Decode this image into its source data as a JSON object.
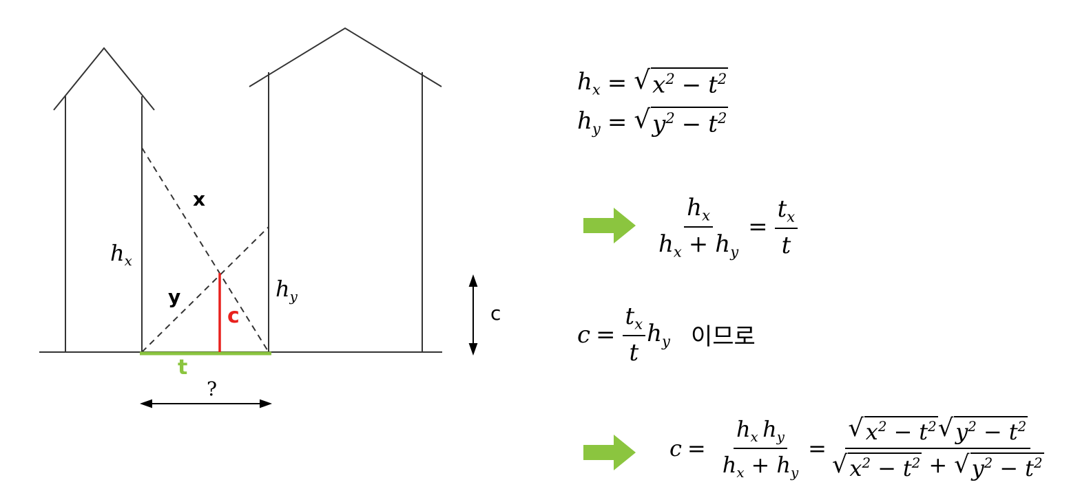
{
  "diagram": {
    "label_x": "x",
    "label_y": "y",
    "label_hx_base": "h",
    "label_hx_sub": "x",
    "label_hy_base": "h",
    "label_hy_sub": "y",
    "label_c_red": "c",
    "label_t_green": "t",
    "label_question": "?",
    "label_c_side": "c",
    "colors": {
      "red": "#e8211d",
      "green": "#8bc53f",
      "line": "#333333"
    }
  },
  "equations": {
    "eq1": {
      "lhs_base": "h",
      "lhs_sub": "x",
      "equals": "=",
      "r1": "x",
      "r1_exp": "2",
      "minus": "−",
      "r2": "t",
      "r2_exp": "2"
    },
    "eq2": {
      "lhs_base": "h",
      "lhs_sub": "y",
      "equals": "=",
      "r1": "y",
      "r1_exp": "2",
      "minus": "−",
      "r2": "t",
      "r2_exp": "2"
    },
    "eq3": {
      "num_base": "h",
      "num_sub": "x",
      "den_a_base": "h",
      "den_a_sub": "x",
      "plus": "+",
      "den_b_base": "h",
      "den_b_sub": "y",
      "equals": "=",
      "rnum_base": "t",
      "rnum_sub": "x",
      "rden": "t"
    },
    "eq4": {
      "lhs": "c",
      "equals": "=",
      "num_base": "t",
      "num_sub": "x",
      "den": "t",
      "tail_base": "h",
      "tail_sub": "y",
      "korean": "이므로"
    },
    "eq5": {
      "lhs": "c",
      "equals": "=",
      "num_a_base": "h",
      "num_a_sub": "x",
      "num_b_base": "h",
      "num_b_sub": "y",
      "den_a_base": "h",
      "den_a_sub": "x",
      "plus": "+",
      "den_b_base": "h",
      "den_b_sub": "y",
      "equals2": "=",
      "s1": "x",
      "s_exp": "2",
      "minus": "−",
      "s2": "t",
      "s3": "y"
    }
  },
  "arrows": {
    "color": "#8bc53f",
    "icon": "right-arrow-icon"
  }
}
